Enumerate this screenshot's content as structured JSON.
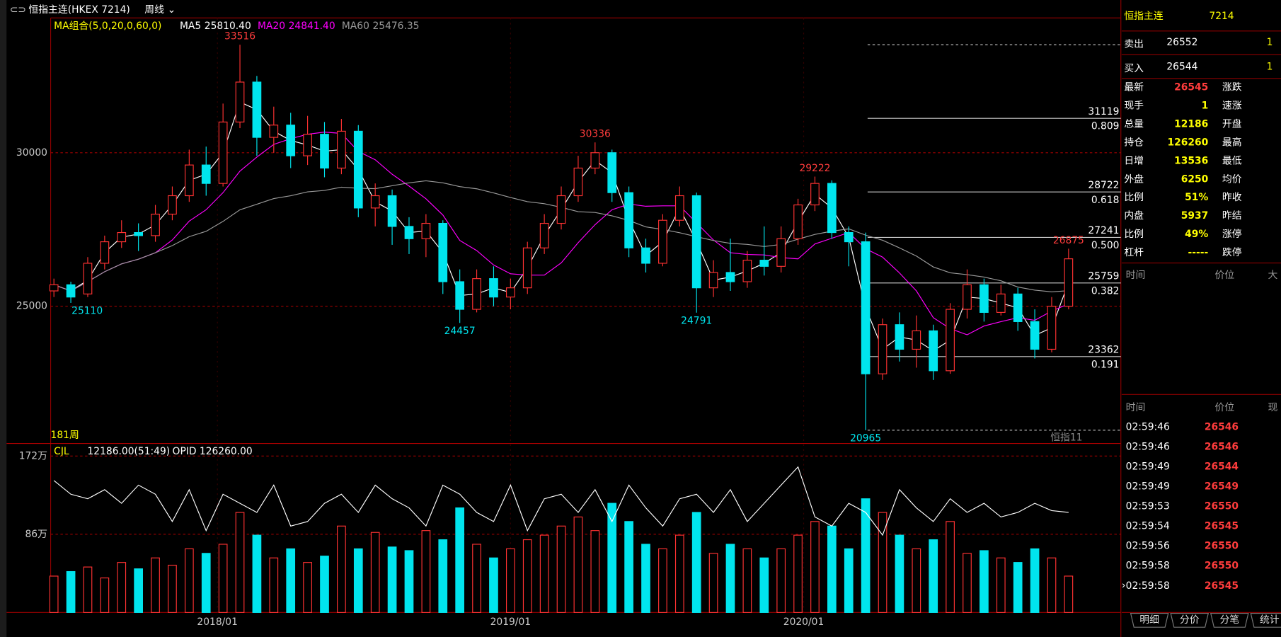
{
  "toolbar": {
    "title": "恒指主连(HKEX 7214)",
    "period": "周线"
  },
  "chart_data": {
    "type": "candlestick",
    "ma_label": "MA组合(5,0,20,0,60,0)",
    "ma_lines": [
      {
        "name": "MA5",
        "period": 5,
        "last": "25810.40",
        "color": "#ffffff"
      },
      {
        "name": "MA20",
        "period": 20,
        "last": "24841.40",
        "color": "#ff00ff"
      },
      {
        "name": "MA60",
        "period": 60,
        "last": "25476.35",
        "color": "#9a9a9a"
      }
    ],
    "bars_label": "181周",
    "watermark": "恒指11",
    "weeks": [
      0,
      3,
      6,
      9,
      12,
      15,
      18,
      21,
      24,
      27,
      30,
      33,
      36,
      39,
      42,
      45,
      48,
      51,
      54,
      57,
      60,
      63,
      66,
      69,
      72,
      75,
      78,
      81,
      84,
      87,
      90,
      93,
      96,
      99,
      102,
      105,
      108,
      111,
      114,
      117,
      120,
      123,
      126,
      129,
      132,
      135,
      138,
      141,
      144,
      147,
      150,
      153,
      156,
      159,
      162,
      165,
      168,
      171,
      174,
      177,
      180
    ],
    "open": [
      25500,
      25700,
      25400,
      26400,
      27100,
      27400,
      27300,
      28000,
      28600,
      29600,
      29000,
      31000,
      32300,
      30500,
      30900,
      29900,
      30600,
      29500,
      30700,
      28200,
      28600,
      27600,
      27200,
      27700,
      25800,
      24900,
      25900,
      25300,
      25600,
      26900,
      27700,
      28600,
      29500,
      30000,
      28700,
      26900,
      26400,
      27800,
      28600,
      25600,
      26100,
      25800,
      26500,
      26300,
      27200,
      28300,
      29000,
      27400,
      27100,
      22800,
      24400,
      23600,
      24200,
      22900,
      24900,
      25700,
      24800,
      25400,
      24500,
      23600,
      25000
    ],
    "close": [
      25700,
      25300,
      26400,
      27100,
      27400,
      27300,
      28000,
      28600,
      29600,
      29000,
      31000,
      32300,
      30500,
      30900,
      29900,
      30600,
      29500,
      30700,
      28200,
      28600,
      27600,
      27200,
      27700,
      25800,
      24900,
      25900,
      25300,
      25600,
      26900,
      27700,
      28600,
      29500,
      30000,
      28700,
      26900,
      26400,
      27800,
      28600,
      25600,
      26100,
      25800,
      26500,
      26300,
      27200,
      28300,
      29000,
      27400,
      27100,
      22800,
      24400,
      23600,
      24200,
      22900,
      24900,
      25700,
      24800,
      25400,
      24500,
      23600,
      25000,
      26545
    ],
    "high": [
      25900,
      25800,
      26600,
      27300,
      27800,
      27700,
      28300,
      28900,
      30100,
      30200,
      31600,
      33516,
      32500,
      31500,
      31300,
      31200,
      31000,
      31100,
      30900,
      29000,
      28800,
      27900,
      28000,
      27800,
      26200,
      26200,
      26300,
      25900,
      27100,
      28000,
      28900,
      29900,
      30336,
      30100,
      28900,
      27200,
      28000,
      28900,
      28700,
      26500,
      27200,
      26800,
      27600,
      27600,
      28500,
      29222,
      29100,
      27600,
      27400,
      24600,
      24800,
      24700,
      24400,
      25100,
      26200,
      25900,
      25700,
      25600,
      24900,
      25300,
      26875
    ],
    "low": [
      25300,
      25110,
      25300,
      26200,
      26900,
      26800,
      27100,
      27800,
      28400,
      28600,
      28900,
      30800,
      29900,
      30000,
      29500,
      29600,
      29200,
      29300,
      27900,
      27600,
      27000,
      26700,
      26600,
      25400,
      24457,
      24800,
      25000,
      24900,
      25400,
      26700,
      27500,
      28400,
      29300,
      28400,
      26600,
      26100,
      26300,
      27600,
      24791,
      25300,
      25500,
      25600,
      26000,
      26100,
      27000,
      28100,
      27200,
      26300,
      20965,
      22600,
      23200,
      23000,
      22600,
      22800,
      24600,
      24500,
      24700,
      24200,
      23300,
      23500,
      24900
    ],
    "up_color": "#ff3232",
    "down_color": "#00e5ee",
    "ylim": [
      20559,
      34388
    ],
    "yticks": [
      30000,
      25000
    ],
    "xticks": [
      {
        "value": 29,
        "label": "2018/01"
      },
      {
        "value": 81,
        "label": "2019/01"
      },
      {
        "value": 133,
        "label": "2020/01"
      }
    ],
    "highs_marked": [
      33516,
      30336,
      29222,
      26875
    ],
    "lows_marked": [
      25110,
      24457,
      24791,
      20965
    ],
    "fib": [
      {
        "value": 31119,
        "ratio": "0.809"
      },
      {
        "value": 28722,
        "ratio": "0.618"
      },
      {
        "value": 27241,
        "ratio": "0.500"
      },
      {
        "value": 25759,
        "ratio": "0.382"
      },
      {
        "value": 23362,
        "ratio": "0.191"
      }
    ],
    "volume": {
      "indicator": "CJL",
      "readout": "12186.00(51:49)",
      "opid_label": "OPID 126260.00",
      "ylim": [
        0,
        184
      ],
      "yticks": [
        {
          "value": 172,
          "label": "172万"
        },
        {
          "value": 86,
          "label": "86万"
        }
      ],
      "values": [
        40,
        45,
        50,
        38,
        55,
        48,
        60,
        52,
        70,
        65,
        75,
        110,
        85,
        60,
        70,
        55,
        62,
        95,
        70,
        88,
        72,
        68,
        90,
        80,
        115,
        75,
        60,
        70,
        80,
        85,
        95,
        105,
        90,
        120,
        100,
        75,
        70,
        85,
        110,
        65,
        75,
        70,
        60,
        70,
        85,
        100,
        95,
        70,
        125,
        110,
        85,
        70,
        80,
        100,
        65,
        68,
        60,
        55,
        70,
        60,
        40
      ],
      "opid": [
        145,
        130,
        125,
        135,
        120,
        140,
        130,
        100,
        135,
        90,
        130,
        120,
        110,
        140,
        95,
        100,
        120,
        130,
        110,
        140,
        125,
        115,
        95,
        140,
        130,
        110,
        100,
        140,
        90,
        125,
        130,
        110,
        135,
        100,
        140,
        115,
        95,
        125,
        130,
        110,
        135,
        100,
        120,
        140,
        160,
        105,
        95,
        120,
        110,
        85,
        135,
        115,
        100,
        125,
        110,
        120,
        105,
        110,
        120,
        112,
        110
      ]
    }
  },
  "quote_panel": {
    "name": "恒指主连",
    "code": "7214",
    "ask": {
      "label": "卖出",
      "price": 26552,
      "size": 1
    },
    "bid": {
      "label": "买入",
      "price": 26544,
      "size": 1
    },
    "rows": [
      {
        "label": "最新",
        "value": 26545,
        "color": "#ff3c3c",
        "right": "涨跌"
      },
      {
        "label": "现手",
        "value": 1,
        "color": "#ffff00",
        "right": "速涨"
      },
      {
        "label": "总量",
        "value": 12186,
        "color": "#ffff00",
        "right": "开盘"
      },
      {
        "label": "持仓",
        "value": 126260,
        "color": "#ffff00",
        "right": "最高"
      },
      {
        "label": "日增",
        "value": 13536,
        "color": "#ffff00",
        "right": "最低"
      },
      {
        "label": "外盘",
        "value": 6250,
        "color": "#ffff00",
        "right": "均价"
      },
      {
        "label": "比例",
        "value": "51%",
        "color": "#ffff00",
        "right": "昨收"
      },
      {
        "label": "内盘",
        "value": 5937,
        "color": "#ffff00",
        "right": "昨结"
      },
      {
        "label": "比例",
        "value": "49%",
        "color": "#ffff00",
        "right": "涨停"
      },
      {
        "label": "杠杆",
        "value": "-----",
        "color": "#ffff00",
        "right": "跌停"
      }
    ],
    "header1": [
      "时间",
      "价位",
      "大"
    ],
    "header2": [
      "时间",
      "价位",
      "现"
    ],
    "trades": [
      {
        "time": "02:59:46",
        "price": 26546
      },
      {
        "time": "02:59:46",
        "price": 26546
      },
      {
        "time": "02:59:49",
        "price": 26544
      },
      {
        "time": "02:59:49",
        "price": 26549
      },
      {
        "time": "02:59:53",
        "price": 26550
      },
      {
        "time": "02:59:54",
        "price": 26545
      },
      {
        "time": "02:59:56",
        "price": 26550
      },
      {
        "time": "02:59:58",
        "price": 26550
      },
      {
        "time": "02:59:58",
        "price": 26545
      }
    ],
    "tabs": [
      "明细",
      "分价",
      "分笔",
      "统计"
    ]
  }
}
